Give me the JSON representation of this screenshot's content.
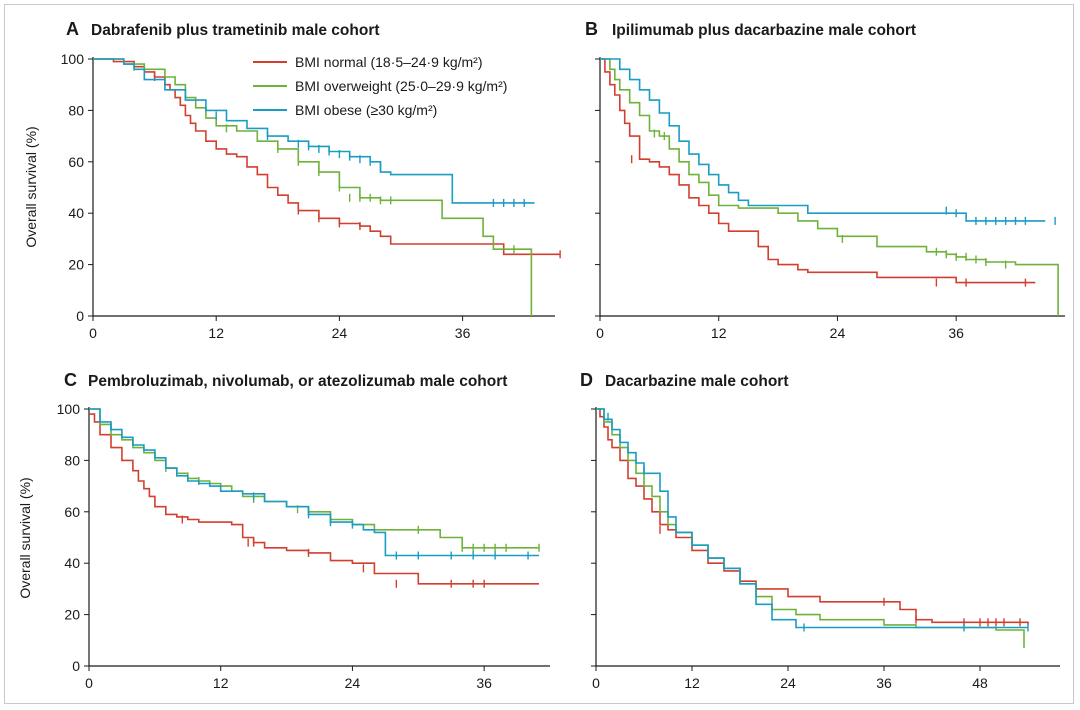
{
  "colors": {
    "normal": "#d13f2f",
    "overweight": "#6fb23a",
    "obese": "#1a9cc4"
  },
  "legend": {
    "normal": "BMI normal (18·5–24·9 kg/m²)",
    "overweight": "BMI overweight (25·0–29·9 kg/m²)",
    "obese": "BMI obese (≥30 kg/m²)"
  },
  "y_axis_label": "Overall survival (%)",
  "chart_data": [
    {
      "type": "line",
      "letter": "A",
      "title": "Dabrafenib plus trametinib male cohort",
      "ylabel": "Overall survival (%)",
      "ylim": [
        0,
        100
      ],
      "xlim": [
        0,
        45
      ],
      "xticks": [
        0,
        12,
        24,
        36
      ],
      "yticks": [
        0,
        20,
        40,
        60,
        80,
        100
      ],
      "show_y_tick_labels": true,
      "series": [
        {
          "key": "normal",
          "name": "BMI normal (18·5–24·9 kg/m²)",
          "x": [
            0,
            2,
            4,
            5,
            6,
            7,
            7.5,
            8,
            8.5,
            9,
            9.5,
            10,
            11,
            12,
            13,
            14,
            15,
            16,
            17,
            18,
            19,
            20,
            22,
            24,
            26,
            27,
            28,
            29,
            40,
            45.5
          ],
          "y": [
            100,
            99,
            97,
            95,
            93,
            90,
            88,
            85,
            82,
            78,
            75,
            72,
            68,
            65,
            63,
            62,
            58,
            55,
            50,
            47,
            44,
            41,
            38,
            36,
            35,
            33,
            31,
            28,
            24,
            24
          ],
          "censor_x": [
            6,
            20,
            22,
            24,
            26,
            45.5
          ],
          "censor_y": [
            93,
            41,
            38,
            36,
            35,
            24
          ]
        },
        {
          "key": "overweight",
          "name": "BMI overweight (25·0–29·9 kg/m²)",
          "x": [
            0,
            3,
            5,
            7,
            8,
            9,
            10,
            11,
            12,
            14,
            16,
            18,
            20,
            22,
            24,
            26,
            28,
            29,
            30,
            31,
            34,
            36,
            38,
            39,
            40,
            42.5,
            42.7
          ],
          "y": [
            100,
            98,
            96,
            93,
            90,
            85,
            81,
            77,
            74,
            72,
            68,
            65,
            60,
            56,
            50,
            46,
            45,
            45,
            45,
            45,
            38,
            38,
            31,
            26,
            26,
            26,
            0
          ],
          "censor_x": [
            4,
            13,
            18,
            20,
            22,
            24,
            25,
            26,
            27,
            28,
            29,
            41
          ],
          "censor_y": [
            97,
            73,
            65,
            60,
            56,
            50,
            46,
            46,
            46,
            45,
            45,
            26
          ]
        },
        {
          "key": "obese",
          "name": "BMI obese (≥30 kg/m²)",
          "x": [
            0,
            3,
            4,
            5,
            7,
            9,
            11,
            13,
            15,
            17,
            19,
            21,
            23,
            25,
            27,
            28,
            29,
            30,
            31,
            32,
            34,
            35,
            36,
            39,
            40,
            41,
            43
          ],
          "y": [
            100,
            98,
            96,
            92,
            88,
            84,
            80,
            76,
            73,
            70,
            68,
            66,
            64,
            62,
            60,
            56,
            55,
            55,
            55,
            55,
            55,
            44,
            44,
            44,
            44,
            44,
            44
          ],
          "censor_x": [
            12,
            17,
            20,
            21,
            22,
            23,
            24,
            25,
            26,
            27,
            28,
            39,
            40,
            41,
            42
          ],
          "censor_y": [
            78,
            70,
            67,
            66,
            65,
            64,
            63,
            62,
            61,
            60,
            58,
            44,
            44,
            44,
            44
          ]
        }
      ]
    },
    {
      "type": "line",
      "letter": "B",
      "title": "Ipilimumab plus dacarbazine male cohort",
      "ylabel": "",
      "ylim": [
        0,
        100
      ],
      "xlim": [
        0,
        47
      ],
      "xticks": [
        0,
        12,
        24,
        36
      ],
      "yticks": [
        0,
        20,
        40,
        60,
        80,
        100
      ],
      "show_y_tick_labels": false,
      "series": [
        {
          "key": "normal",
          "name": "BMI normal (18·5–24·9 kg/m²)",
          "x": [
            0,
            0.5,
            1,
            1.5,
            2,
            2.5,
            3,
            4,
            5,
            6,
            7,
            8,
            9,
            10,
            11,
            12,
            13,
            14,
            16,
            17,
            18,
            20,
            21,
            24,
            28,
            36,
            44
          ],
          "y": [
            100,
            95,
            90,
            86,
            80,
            75,
            70,
            61,
            60,
            58,
            55,
            51,
            46,
            43,
            40,
            36,
            33,
            33,
            27,
            22,
            20,
            18,
            17,
            17,
            15,
            13,
            13
          ],
          "censor_x": [
            3.2,
            34,
            37,
            43
          ],
          "censor_y": [
            61,
            13,
            13,
            13
          ]
        },
        {
          "key": "overweight",
          "name": "BMI overweight (25·0–29·9 kg/m²)",
          "x": [
            0,
            1,
            1.5,
            2,
            3,
            4,
            5,
            6,
            7,
            8,
            9,
            10,
            11,
            12,
            14,
            18,
            20,
            22,
            24,
            28,
            33,
            35,
            36,
            37,
            39,
            42,
            46,
            46.3
          ],
          "y": [
            100,
            96,
            92,
            88,
            83,
            78,
            72,
            70,
            65,
            60,
            55,
            52,
            47,
            43,
            42,
            40,
            37,
            34,
            31,
            27,
            25,
            24,
            23,
            22,
            21,
            20,
            20,
            0
          ],
          "censor_x": [
            5.5,
            6.5,
            24.5,
            34,
            35,
            36,
            37,
            38,
            39,
            41
          ],
          "censor_y": [
            71,
            70,
            30,
            25,
            24,
            23,
            23,
            22,
            21,
            20
          ]
        },
        {
          "key": "obese",
          "name": "BMI obese (≥30 kg/m²)",
          "x": [
            0,
            2,
            3,
            4,
            5,
            6,
            7,
            8,
            9,
            10,
            11,
            12,
            13,
            14,
            15,
            17,
            21,
            33,
            36,
            37,
            38,
            45
          ],
          "y": [
            100,
            96,
            92,
            88,
            84,
            79,
            74,
            68,
            63,
            59,
            55,
            51,
            48,
            45,
            43,
            43,
            40,
            40,
            40,
            37,
            37,
            37
          ],
          "censor_x": [
            35,
            36,
            38,
            39,
            40,
            41,
            42,
            43,
            46
          ],
          "censor_y": [
            41,
            40,
            37,
            37,
            37,
            37,
            37,
            37,
            37
          ]
        }
      ]
    },
    {
      "type": "line",
      "letter": "C",
      "title": "Pembroluzimab, nivolumab, or atezolizumab male cohort",
      "ylabel": "Overall survival (%)",
      "ylim": [
        0,
        100
      ],
      "xlim": [
        0,
        42
      ],
      "xticks": [
        0,
        12,
        24,
        36
      ],
      "yticks": [
        0,
        20,
        40,
        60,
        80,
        100
      ],
      "show_y_tick_labels": true,
      "series": [
        {
          "key": "normal",
          "name": "BMI normal (18·5–24·9 kg/m²)",
          "x": [
            0,
            0.5,
            1,
            2,
            3,
            4,
            4.5,
            5,
            5.5,
            6,
            7,
            8,
            9,
            10,
            11,
            12,
            13,
            14,
            15,
            16,
            18,
            20,
            22,
            24,
            26,
            30,
            41
          ],
          "y": [
            98,
            95,
            90,
            85,
            80,
            76,
            72,
            69,
            66,
            62,
            59,
            58,
            57,
            56,
            56,
            56,
            55,
            50,
            48,
            46,
            45,
            44,
            41,
            40,
            36,
            32,
            32
          ],
          "censor_x": [
            8.5,
            14.5,
            15,
            20,
            25,
            28,
            33,
            35,
            36
          ],
          "censor_y": [
            57,
            48,
            48,
            44,
            38,
            32,
            32,
            32,
            32
          ]
        },
        {
          "key": "overweight",
          "name": "BMI overweight (25·0–29·9 kg/m²)",
          "x": [
            0,
            1,
            2,
            3,
            4,
            5,
            6,
            7,
            8,
            9,
            10,
            11,
            12,
            13,
            14,
            16,
            18,
            20,
            22,
            24,
            26,
            28,
            30,
            32,
            34,
            36,
            41
          ],
          "y": [
            100,
            94,
            90,
            88,
            85,
            83,
            80,
            77,
            75,
            73,
            72,
            71,
            70,
            68,
            66,
            64,
            62,
            60,
            57,
            55,
            53,
            53,
            53,
            50,
            46,
            46,
            46
          ],
          "censor_x": [
            7,
            10,
            15,
            19,
            22,
            30,
            34,
            35,
            36,
            37,
            38,
            41
          ],
          "censor_y": [
            77,
            72,
            65,
            61,
            57,
            53,
            46,
            46,
            46,
            46,
            46,
            46
          ]
        },
        {
          "key": "obese",
          "name": "BMI obese (≥30 kg/m²)",
          "x": [
            0,
            1,
            2,
            3,
            4,
            5,
            6,
            7,
            8,
            9,
            10,
            11,
            12,
            14,
            16,
            18,
            20,
            22,
            24,
            25,
            26,
            27,
            28,
            30,
            36,
            41
          ],
          "y": [
            100,
            95,
            92,
            89,
            86,
            84,
            81,
            77,
            74,
            72,
            71,
            70,
            68,
            67,
            64,
            62,
            59,
            56,
            55,
            53,
            52,
            43,
            43,
            43,
            43,
            43
          ],
          "censor_x": [
            2,
            15,
            20,
            22,
            24,
            28,
            30,
            33,
            35,
            37,
            40
          ],
          "censor_y": [
            93,
            66,
            59,
            56,
            55,
            43,
            43,
            43,
            43,
            43,
            43
          ]
        }
      ]
    },
    {
      "type": "line",
      "letter": "D",
      "title": "Dacarbazine male cohort",
      "ylabel": "",
      "ylim": [
        0,
        100
      ],
      "xlim": [
        0,
        58
      ],
      "xticks": [
        0,
        12,
        24,
        36,
        48
      ],
      "yticks": [
        0,
        20,
        40,
        60,
        80,
        100
      ],
      "show_y_tick_labels": false,
      "series": [
        {
          "key": "normal",
          "name": "BMI normal (18·5–24·9 kg/m²)",
          "x": [
            0,
            0.5,
            1,
            1.5,
            2,
            3,
            4,
            5,
            6,
            7,
            8,
            9,
            10,
            12,
            14,
            16,
            18,
            20,
            24,
            28,
            36,
            38,
            40,
            42,
            54
          ],
          "y": [
            100,
            97,
            93,
            88,
            85,
            80,
            73,
            70,
            65,
            60,
            55,
            53,
            50,
            45,
            40,
            37,
            33,
            30,
            27,
            25,
            25,
            22,
            18,
            17,
            16
          ],
          "censor_x": [
            8,
            36,
            40,
            46,
            48,
            49,
            50,
            51,
            53
          ],
          "censor_y": [
            53,
            25,
            18,
            17,
            17,
            17,
            17,
            17,
            17
          ]
        },
        {
          "key": "overweight",
          "name": "BMI overweight (25·0–29·9 kg/m²)",
          "x": [
            0,
            1,
            2,
            3,
            4,
            5,
            6,
            7,
            8,
            9,
            10,
            12,
            14,
            16,
            18,
            20,
            22,
            25,
            28,
            36,
            40,
            46,
            50,
            53,
            53.5
          ],
          "y": [
            100,
            95,
            90,
            85,
            80,
            75,
            70,
            66,
            60,
            55,
            52,
            47,
            42,
            38,
            32,
            27,
            22,
            20,
            18,
            16,
            15,
            15,
            14,
            14,
            7
          ],
          "censor_x": [],
          "censor_y": []
        },
        {
          "key": "obese",
          "name": "BMI obese (≥30 kg/m²)",
          "x": [
            0,
            1,
            2,
            3,
            4,
            5,
            6,
            7,
            8,
            9,
            10,
            12,
            14,
            16,
            18,
            20,
            22,
            25,
            30,
            36,
            40,
            46,
            54
          ],
          "y": [
            100,
            96,
            92,
            87,
            83,
            79,
            75,
            75,
            68,
            58,
            52,
            47,
            42,
            38,
            32,
            24,
            18,
            15,
            15,
            15,
            15,
            15,
            15
          ],
          "censor_x": [
            1.5,
            6,
            26,
            46,
            54
          ],
          "censor_y": [
            97,
            76,
            15,
            15,
            15
          ]
        }
      ]
    }
  ]
}
